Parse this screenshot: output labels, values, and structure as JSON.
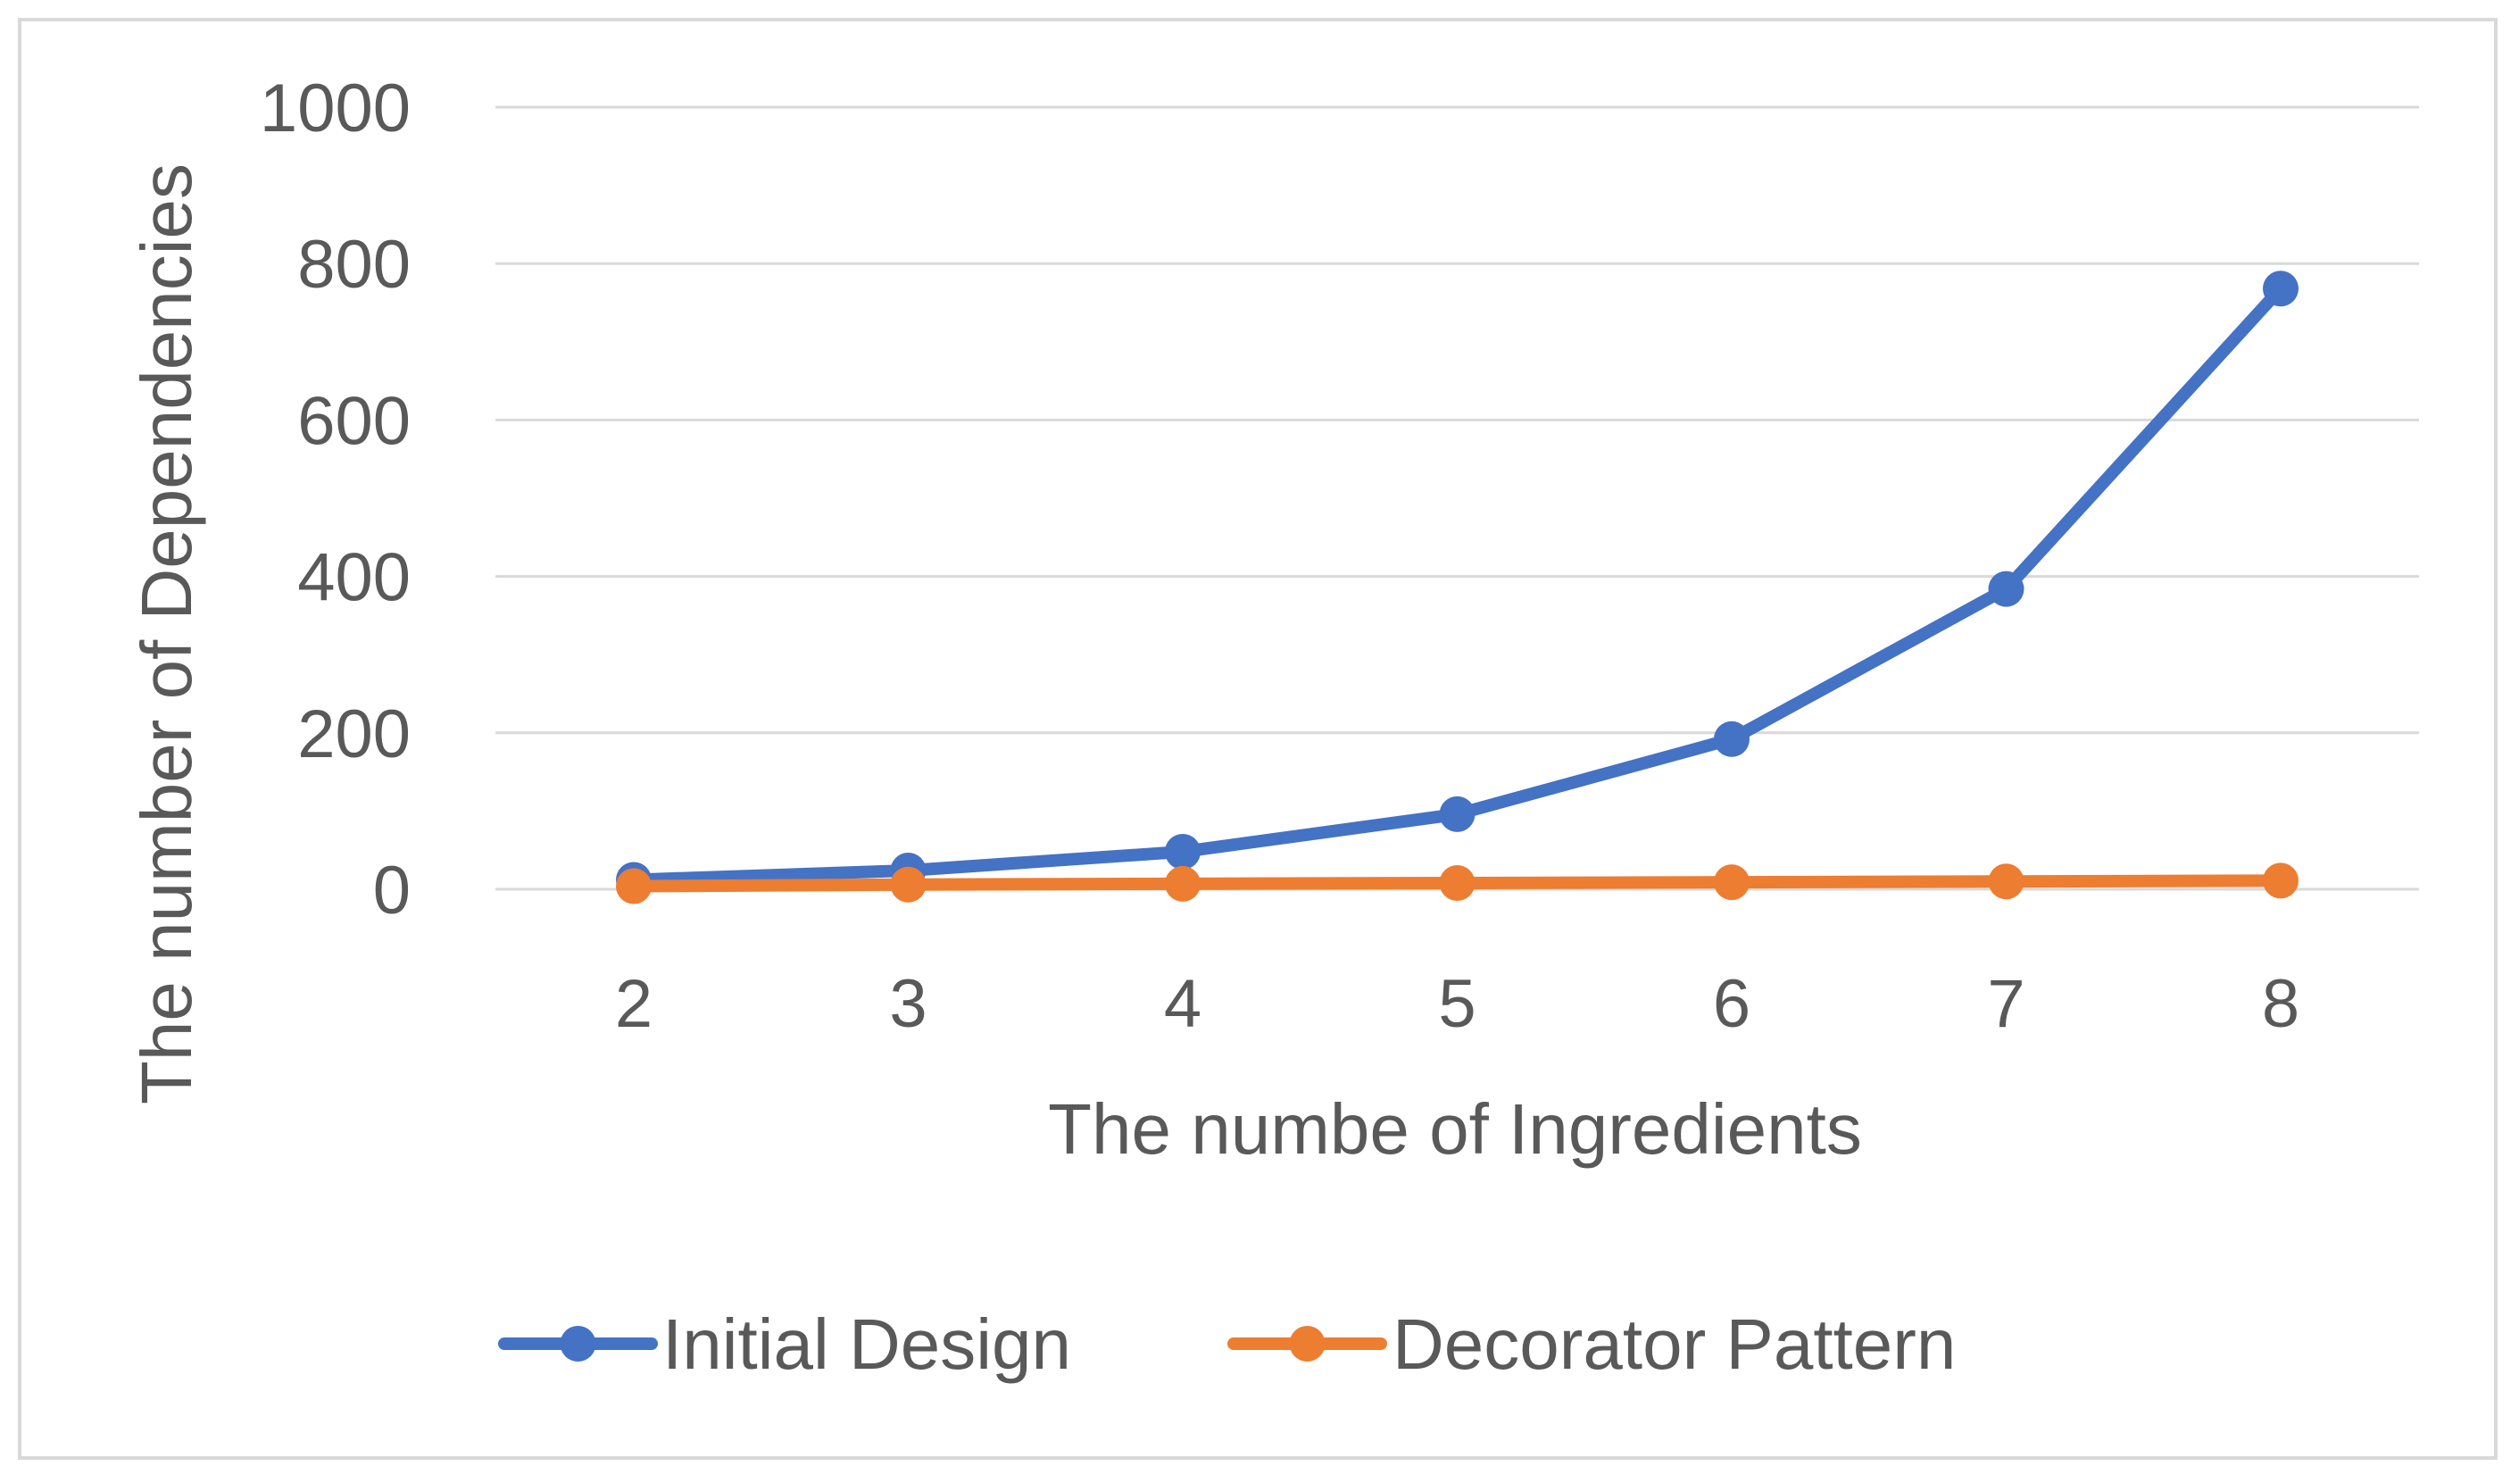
{
  "chart_data": {
    "type": "line",
    "title": "",
    "xlabel": "The numbe of Ingredients",
    "ylabel": "The number of Dependencies",
    "x": [
      2,
      3,
      4,
      5,
      6,
      7,
      8
    ],
    "categories": [
      "2",
      "3",
      "4",
      "5",
      "6",
      "7",
      "8"
    ],
    "ylim": [
      0,
      1000
    ],
    "yticks": [
      0,
      200,
      400,
      600,
      800,
      1000
    ],
    "grid": "horizontal",
    "legend_position": "bottom",
    "series": [
      {
        "name": "Initial Design",
        "color": "#4472C4",
        "marker": "circle",
        "values": [
          12,
          24,
          48,
          96,
          192,
          384,
          768
        ]
      },
      {
        "name": "Decorator Pattern",
        "color": "#ED7D31",
        "marker": "circle",
        "values": [
          4,
          6,
          7,
          8,
          9,
          10,
          11
        ]
      }
    ]
  }
}
